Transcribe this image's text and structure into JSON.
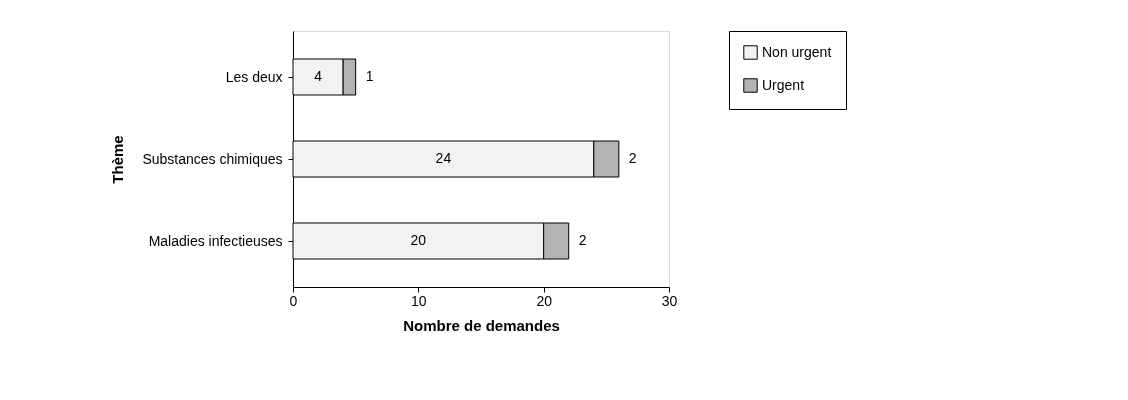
{
  "chart_data": {
    "type": "bar",
    "orientation": "horizontal",
    "stacked": true,
    "categories": [
      "Les deux",
      "Substances chimiques",
      "Maladies infectieuses"
    ],
    "series": [
      {
        "name": "Non urgent",
        "color": "#f2f2f2",
        "values": [
          4,
          24,
          20
        ]
      },
      {
        "name": "Urgent",
        "color": "#b3b3b3",
        "values": [
          1,
          2,
          2
        ]
      }
    ],
    "xlabel": "Nombre de demandes",
    "ylabel": "Thème",
    "xlim": [
      0,
      30
    ],
    "xticks": [
      0,
      10,
      20,
      30
    ],
    "data_labels": true,
    "grid": false,
    "legend": "right"
  }
}
